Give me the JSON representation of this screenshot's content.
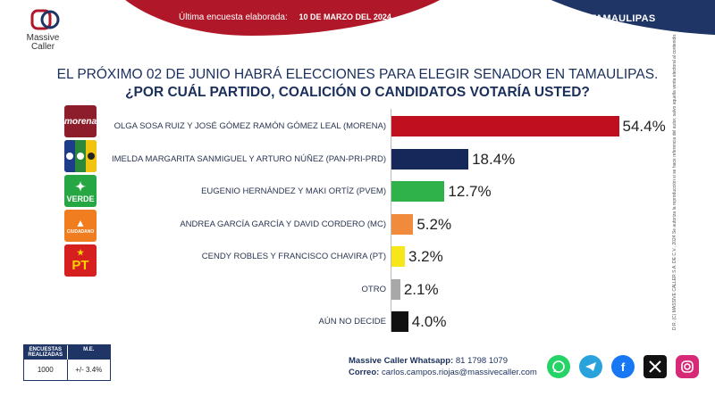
{
  "header": {
    "brand_line1": "Massive",
    "brand_line2": "Caller",
    "survey_label": "Última encuesta elaborada:",
    "survey_date": "10 DE MARZO DEL 2024",
    "state": "TAMAULIPAS"
  },
  "headline": "EL PRÓXIMO 02 DE JUNIO HABRÁ ELECCIONES PARA ELEGIR SENADOR EN TAMAULIPAS.",
  "question": "¿POR CUÁL PARTIDO, COALICIÓN O CANDIDATOS VOTARÍA USTED?",
  "party_logos": {
    "morena": "morena",
    "verde": "VERDE",
    "mc": "CIUDADANO",
    "pt": "PT"
  },
  "chart_data": {
    "type": "bar",
    "orientation": "horizontal",
    "categories": [
      "OLGA SOSA RUIZ Y JOSÉ GÓMEZ RAMÓN GÓMEZ LEAL (MORENA)",
      "IMELDA MARGARITA SANMIGUEL Y ARTURO NÚÑEZ (PAN-PRI-PRD)",
      "EUGENIO HERNÁNDEZ  Y MAKI ORTÍZ (PVEM)",
      "ANDREA GARCÍA GARCÍA  Y DAVID CORDERO (MC)",
      "CENDY ROBLES Y FRANCISCO CHAVIRA (PT)",
      "OTRO",
      "AÚN NO DECIDE"
    ],
    "values": [
      54.4,
      18.4,
      12.7,
      5.2,
      3.2,
      2.1,
      4.0
    ],
    "value_labels": [
      "54.4%",
      "18.4%",
      "12.7%",
      "5.2%",
      "3.2%",
      "2.1%",
      "4.0%"
    ],
    "colors": [
      "#c00f1e",
      "#16275a",
      "#2fb24a",
      "#f08a3c",
      "#f7e61a",
      "#a8a8a8",
      "#111111"
    ],
    "xlim": [
      0,
      56
    ]
  },
  "side_note": "D.R. (C) MASSIVE CALLER S.A. DE C.V., 2024   Se autoriza la reproducción si se hace referencia del autor, salvo aquella venta electoral al contenido.",
  "stats": {
    "col1_header": "ENCUESTAS REALIZADAS",
    "col2_header": "M.E.",
    "col1_value": "1000",
    "col2_value": "+/- 3.4%"
  },
  "contact": {
    "whatsapp_label": "Massive Caller Whatsapp:",
    "whatsapp_number": "81 1798  1079",
    "email_label": "Correo:",
    "email": "carlos.campos.riojas@massivecaller.com"
  },
  "social_icons": [
    "whatsapp-icon",
    "telegram-icon",
    "facebook-icon",
    "x-icon",
    "instagram-icon"
  ]
}
